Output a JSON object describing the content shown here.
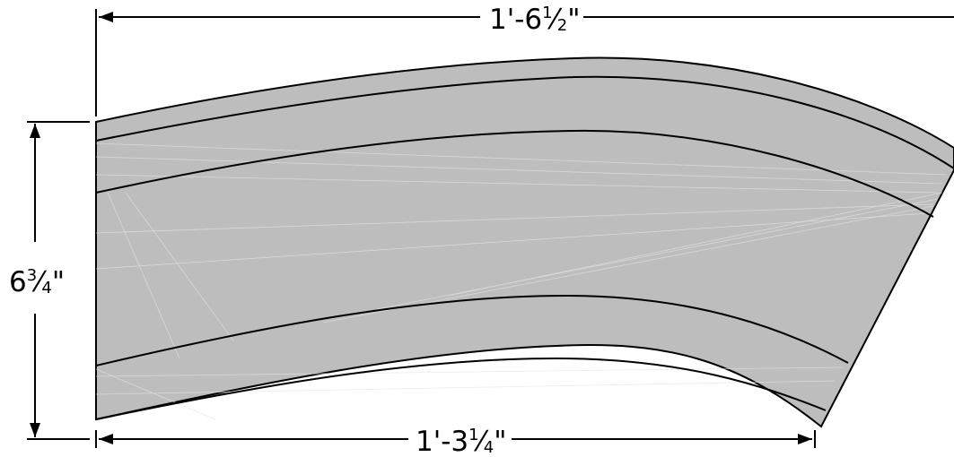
{
  "dimensions": {
    "top_width": {
      "feet": "1'-6",
      "num": "1",
      "den": "2",
      "marks": "\""
    },
    "bottom_width": {
      "feet": "1'-3",
      "num": "1",
      "den": "4",
      "marks": "\""
    },
    "height": {
      "whole": "6",
      "num": "3",
      "den": "4",
      "marks": "\""
    }
  },
  "colors": {
    "fill": "#bdbdbd",
    "stroke": "#000000",
    "streak": "#e4e4e4",
    "background": "#ffffff"
  }
}
